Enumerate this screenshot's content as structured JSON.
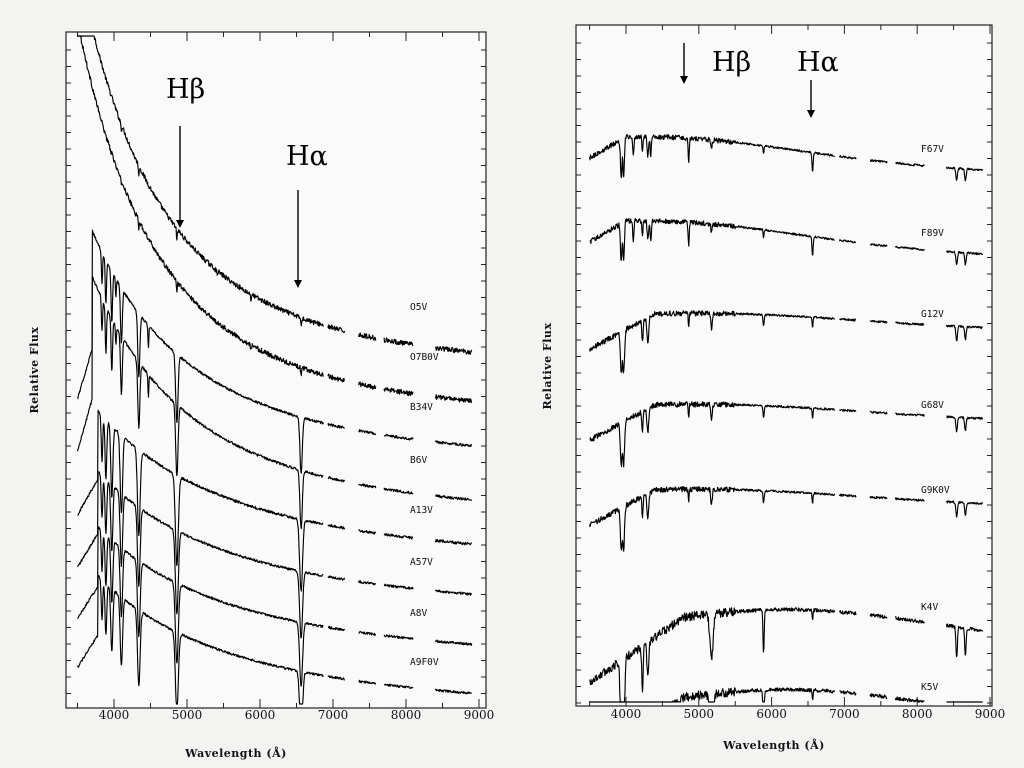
{
  "chart_data": [
    {
      "type": "line",
      "xlabel": "Wavelength (Å)",
      "ylabel": "Relative Flux",
      "xlim": [
        3500,
        9000
      ],
      "xticks": [
        "4000",
        "5000",
        "6000",
        "7000",
        "8000",
        "9000"
      ],
      "annotations": [
        {
          "text": "Hβ",
          "x": 4861
        },
        {
          "text": "Hα",
          "x": 6563
        }
      ],
      "series": [
        {
          "name": "O5V",
          "kind": "hot",
          "offset": 8.0
        },
        {
          "name": "O7B0V",
          "kind": "hot",
          "offset": 7.0
        },
        {
          "name": "B34V",
          "kind": "b",
          "offset": 6.0
        },
        {
          "name": "B6V",
          "kind": "b",
          "offset": 5.0
        },
        {
          "name": "A13V",
          "kind": "a",
          "offset": 4.0
        },
        {
          "name": "A57V",
          "kind": "a",
          "offset": 3.0
        },
        {
          "name": "A8V",
          "kind": "a",
          "offset": 2.0
        },
        {
          "name": "A9F0V",
          "kind": "a",
          "offset": 1.0
        }
      ]
    },
    {
      "type": "line",
      "xlabel": "Wavelength (Å)",
      "ylabel": "Relative Flux",
      "xlim": [
        3500,
        9000
      ],
      "xticks": [
        "4000",
        "5000",
        "6000",
        "7000",
        "8000",
        "9000"
      ],
      "annotations": [
        {
          "text": "Hβ",
          "x": 4861
        },
        {
          "text": "Hα",
          "x": 6563
        }
      ],
      "series": [
        {
          "name": "F67V",
          "kind": "f",
          "offset": 7.0
        },
        {
          "name": "F89V",
          "kind": "f",
          "offset": 6.0
        },
        {
          "name": "G12V",
          "kind": "g",
          "offset": 5.0
        },
        {
          "name": "G68V",
          "kind": "g",
          "offset": 4.0
        },
        {
          "name": "G9K0V",
          "kind": "g",
          "offset": 3.0
        },
        {
          "name": "K4V",
          "kind": "k",
          "offset": 2.0
        },
        {
          "name": "K5V",
          "kind": "k",
          "offset": 1.0
        }
      ]
    }
  ]
}
